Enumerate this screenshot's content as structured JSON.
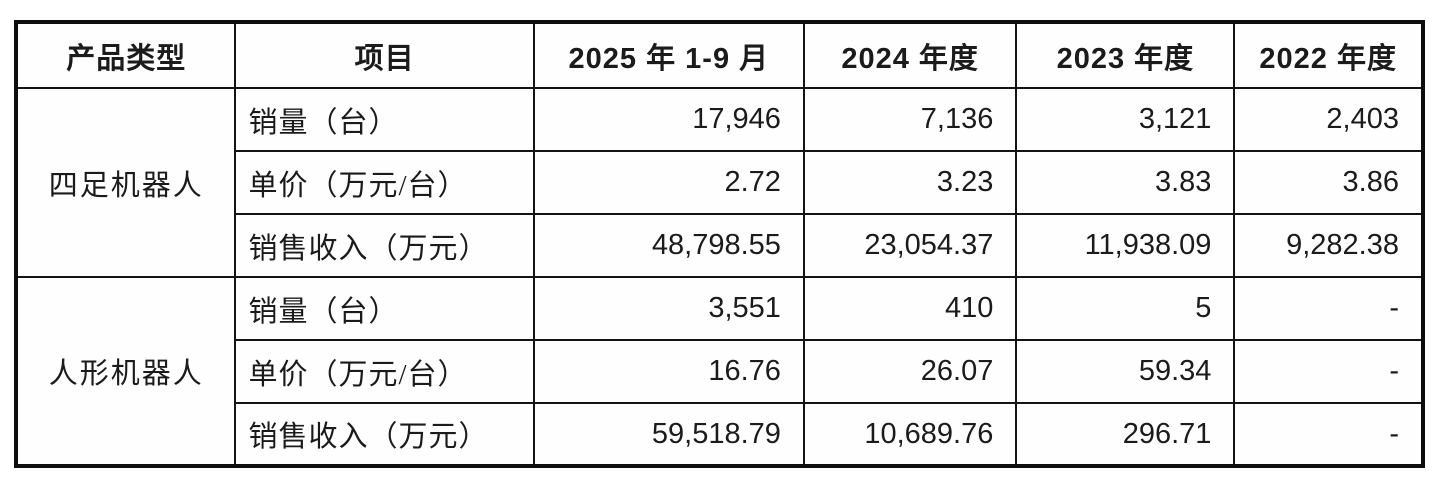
{
  "table": {
    "headers": [
      "产品类型",
      "项目",
      "2025 年 1-9 月",
      "2024 年度",
      "2023 年度",
      "2022 年度"
    ],
    "groups": [
      {
        "product": "四足机器人",
        "rows": [
          {
            "item": "销量（台）",
            "values": [
              "17,946",
              "7,136",
              "3,121",
              "2,403"
            ]
          },
          {
            "item": "单价（万元/台）",
            "values": [
              "2.72",
              "3.23",
              "3.83",
              "3.86"
            ]
          },
          {
            "item": "销售收入（万元）",
            "values": [
              "48,798.55",
              "23,054.37",
              "11,938.09",
              "9,282.38"
            ]
          }
        ]
      },
      {
        "product": "人形机器人",
        "rows": [
          {
            "item": "销量（台）",
            "values": [
              "3,551",
              "410",
              "5",
              "-"
            ]
          },
          {
            "item": "单价（万元/台）",
            "values": [
              "16.76",
              "26.07",
              "59.34",
              "-"
            ]
          },
          {
            "item": "销售收入（万元）",
            "values": [
              "59,518.79",
              "10,689.76",
              "296.71",
              "-"
            ]
          }
        ]
      }
    ]
  },
  "colors": {
    "border": "#141414",
    "outer_border": "#0d0d0d",
    "background": "#ffffff",
    "text": "#1b1b1b"
  }
}
